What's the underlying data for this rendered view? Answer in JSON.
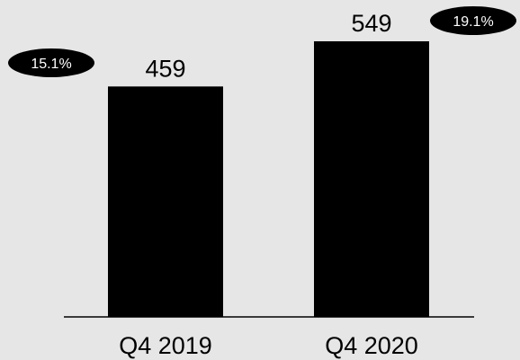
{
  "chart_data": {
    "type": "bar",
    "categories": [
      "Q4 2019",
      "Q4 2020"
    ],
    "values": [
      459,
      549
    ],
    "value_labels": [
      "459",
      "549"
    ],
    "badges": [
      "15.1%",
      "19.1%"
    ],
    "title": "",
    "xlabel": "",
    "ylabel": "",
    "ylim": [
      0,
      549
    ],
    "grid": false,
    "legend": "none",
    "colors": {
      "background": "#e6e6e6",
      "bar": "#000000",
      "axis": "#000000",
      "badge_fill": "#000000",
      "badge_text": "#ffffff",
      "label_text": "#000000"
    }
  }
}
